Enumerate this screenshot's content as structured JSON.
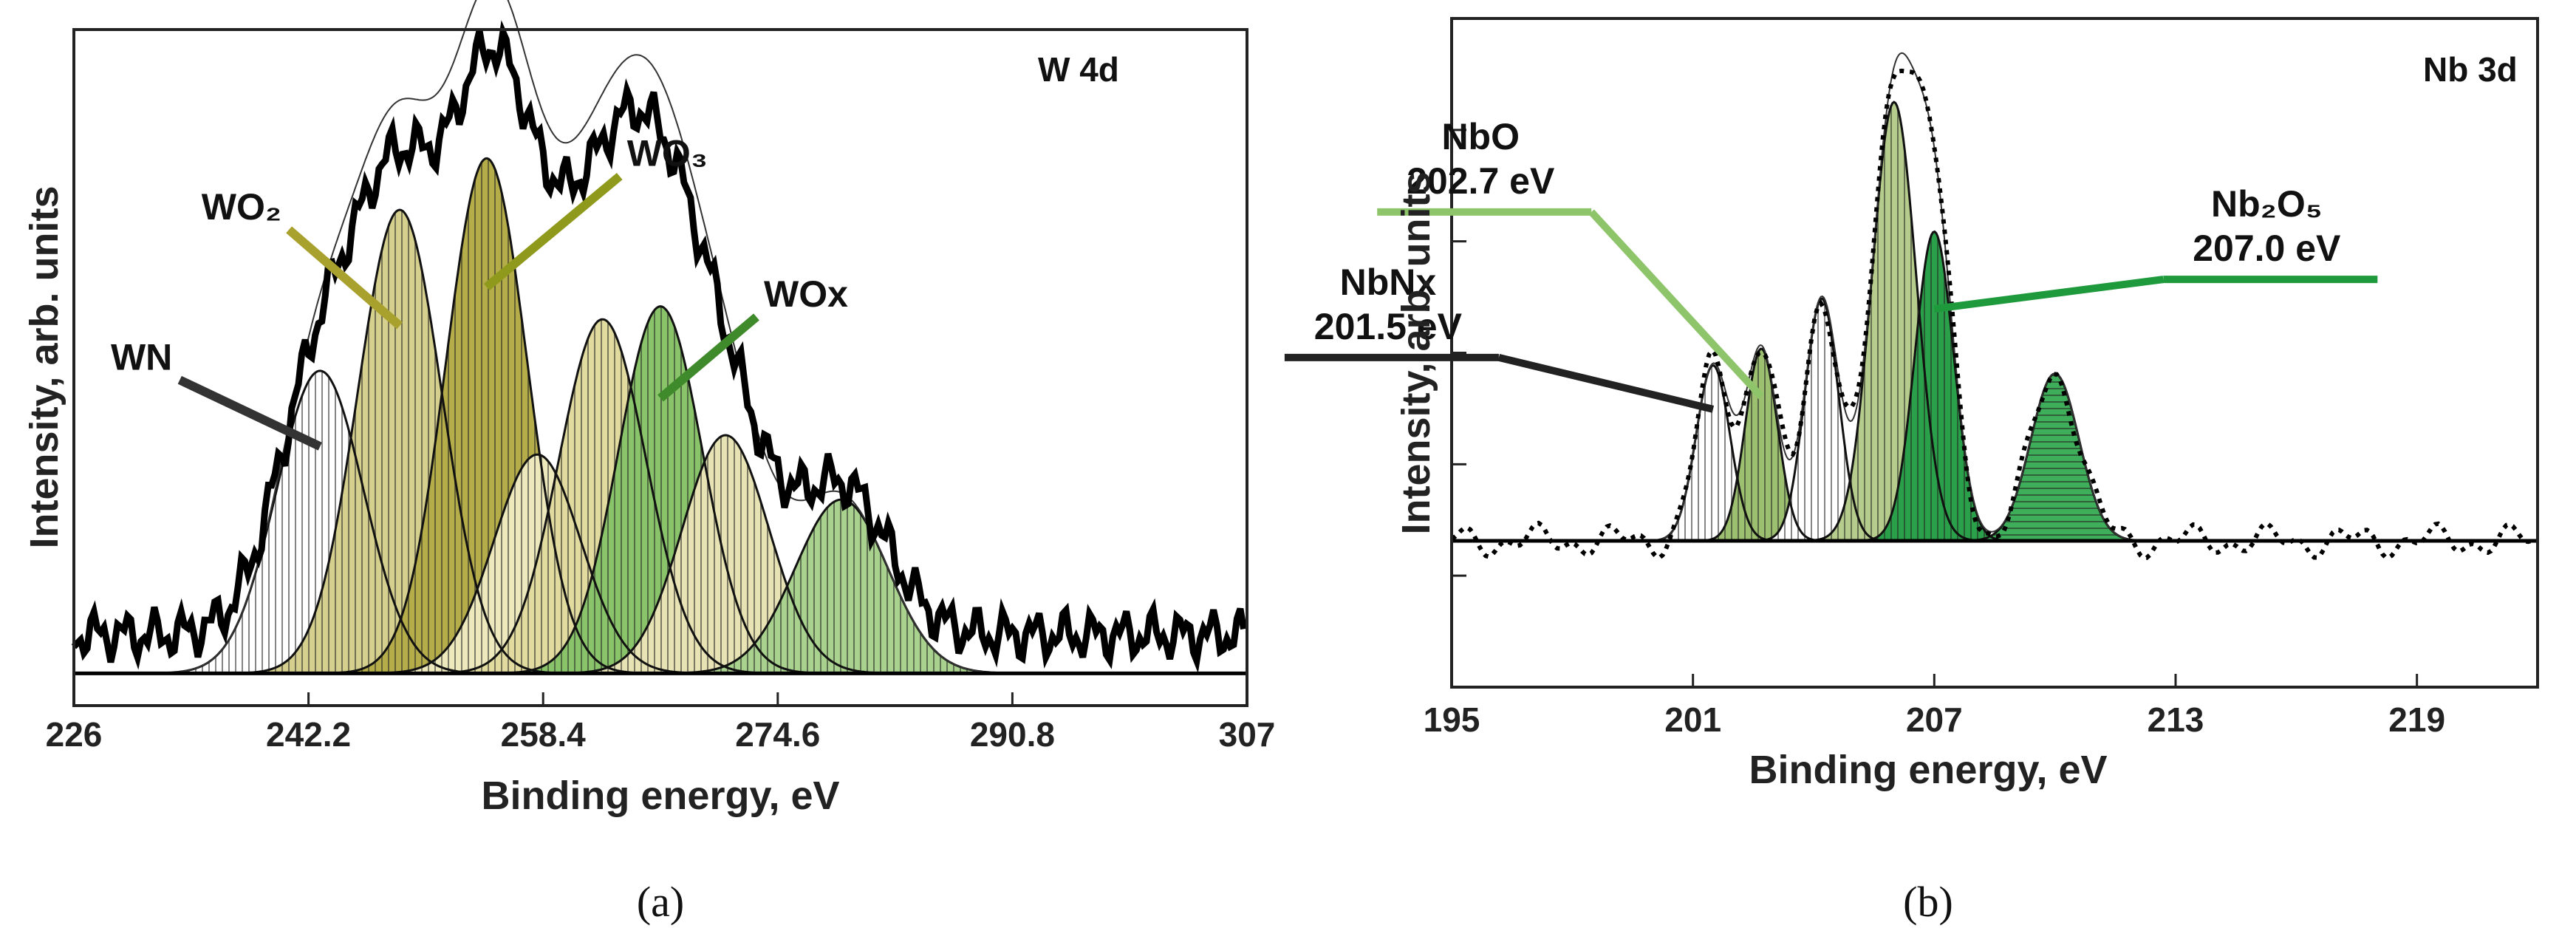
{
  "chart_data": [
    {
      "panel": "a",
      "type": "line",
      "title": "W 4d",
      "caption": "(a)",
      "xlabel": "Binding energy, eV",
      "ylabel": "Intensity, arb. units",
      "xlim": [
        226,
        307
      ],
      "ylim": [
        0,
        1.05
      ],
      "xticks": [
        "226",
        "242.2",
        "258.4",
        "274.6",
        "290.8",
        "307"
      ],
      "grid": false,
      "baseline": 0.05,
      "peaks": [
        {
          "label": "WN",
          "center": 243.0,
          "height": 0.47,
          "width": 3.0,
          "fill": "#ffffff"
        },
        {
          "label": "WO2",
          "center": 248.5,
          "height": 0.72,
          "width": 2.9,
          "fill": "#d6d08e"
        },
        {
          "label": "WO3",
          "center": 254.5,
          "height": 0.8,
          "width": 2.8,
          "fill": "#b5ad4a"
        },
        {
          "label": "",
          "center": 258.0,
          "height": 0.34,
          "width": 3.0,
          "fill": "#ede9bd"
        },
        {
          "label": "",
          "center": 262.5,
          "height": 0.55,
          "width": 3.0,
          "fill": "#e1dba0"
        },
        {
          "label": "WOx",
          "center": 266.5,
          "height": 0.57,
          "width": 2.9,
          "fill": "#8ac46a"
        },
        {
          "label": "",
          "center": 271.0,
          "height": 0.37,
          "width": 3.0,
          "fill": "#e7e3b4"
        },
        {
          "label": "",
          "center": 279.0,
          "height": 0.27,
          "width": 3.2,
          "fill": "#a9d28e"
        }
      ],
      "annotations": [
        {
          "text": "WN",
          "peak": "WN",
          "line_color": "#333333"
        },
        {
          "text": "WO₂",
          "peak": "WO2",
          "line_color": "#a8a12e"
        },
        {
          "text": "WO₃",
          "peak": "WO3",
          "line_color": "#8f9a1d"
        },
        {
          "text": "WOx",
          "peak": "WOx",
          "line_color": "#3f8a2a"
        }
      ]
    },
    {
      "panel": "b",
      "type": "line",
      "title": "Nb 3d",
      "caption": "(b)",
      "xlabel": "Binding energy, eV",
      "ylabel": "Intensity, arb. units",
      "xlim": [
        195,
        222
      ],
      "ylim": [
        -0.35,
        1.25
      ],
      "xticks": [
        "195",
        "201",
        "207",
        "213",
        "219"
      ],
      "grid": false,
      "baseline": 0.0,
      "peaks": [
        {
          "label": "NbNx",
          "center": 201.5,
          "height": 0.42,
          "width": 0.42,
          "fill": "#ffffff"
        },
        {
          "label": "NbO",
          "center": 202.7,
          "height": 0.46,
          "width": 0.4,
          "fill": "#9cc070"
        },
        {
          "label": "",
          "center": 204.2,
          "height": 0.58,
          "width": 0.42,
          "fill": "#ffffff"
        },
        {
          "label": "",
          "center": 206.0,
          "height": 1.05,
          "width": 0.55,
          "fill": "#b6cc8c"
        },
        {
          "label": "Nb2O5",
          "center": 207.0,
          "height": 0.74,
          "width": 0.48,
          "fill": "#2aa04a"
        },
        {
          "label": "",
          "center": 210.0,
          "height": 0.4,
          "width": 0.6,
          "fill": "#3fae5a"
        }
      ],
      "annotations": [
        {
          "text": "NbNx",
          "value": "201.5 eV",
          "peak": "NbNx",
          "line_color": "#222222"
        },
        {
          "text": "NbO",
          "value": "202.7 eV",
          "peak": "NbO",
          "line_color": "#8ec46a"
        },
        {
          "text": "Nb₂O₅",
          "value": "207.0 eV",
          "peak": "Nb2O5",
          "line_color": "#1e9a3c"
        }
      ]
    }
  ]
}
